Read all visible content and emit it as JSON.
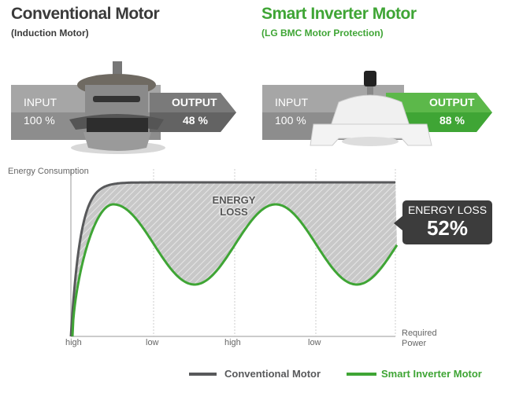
{
  "conventional": {
    "title": "Conventional Motor",
    "subtitle": "(Induction Motor)",
    "input_label": "INPUT",
    "input_value": "100 %",
    "output_label": "OUTPUT",
    "output_value": "48 %"
  },
  "inverter": {
    "title": "Smart Inverter Motor",
    "subtitle": "(LG BMC Motor Protection)",
    "input_label": "INPUT",
    "input_value": "100 %",
    "output_label": "OUTPUT",
    "output_value": "88 %"
  },
  "colors": {
    "green": "#3fa535",
    "dark": "#58595b",
    "gray": "#9d9d9d",
    "callout": "#3c3c3c"
  },
  "chart_data": {
    "type": "line",
    "ylabel": "Energy Consumption",
    "xlabel": "Required Power",
    "x_ticks": [
      "high",
      "low",
      "high",
      "low"
    ],
    "area_label": "ENERGY LOSS",
    "callout": {
      "label": "ENERGY LOSS",
      "value": "52%"
    },
    "grid": "vertical dotted",
    "legend_position": "bottom-right",
    "series": [
      {
        "name": "Conventional Motor",
        "color": "#58595b",
        "shape": "rises quickly then constant high"
      },
      {
        "name": "Smart Inverter Motor",
        "color": "#3fa535",
        "shape": "oscillates with required power: peaks between ticks, troughs at low/high ticks"
      }
    ]
  }
}
